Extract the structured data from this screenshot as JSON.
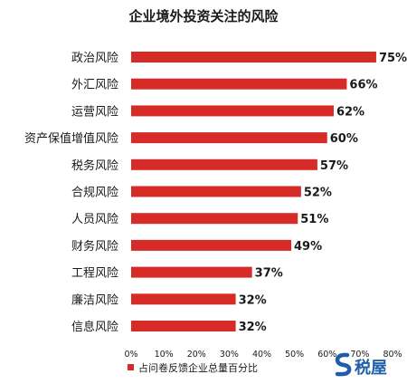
{
  "chart_data": {
    "type": "bar",
    "orientation": "horizontal",
    "title": "企业境外投资关注的风险",
    "categories": [
      "政治风险",
      "外汇风险",
      "运营风险",
      "资产保值增值风险",
      "税务风险",
      "合规风险",
      "人员风险",
      "财务风险",
      "工程风险",
      "廉洁风险",
      "信息风险"
    ],
    "series": [
      {
        "name": "占问卷反馈企业总量百分比",
        "values": [
          75,
          66,
          62,
          60,
          57,
          52,
          51,
          49,
          37,
          32,
          32
        ],
        "labels": [
          "75%",
          "66%",
          "62%",
          "60%",
          "57%",
          "52%",
          "51%",
          "49%",
          "37%",
          "32%",
          "32%"
        ],
        "color": "#d62b27"
      }
    ],
    "xlim": [
      0,
      80
    ],
    "xticks": [
      "0%",
      "10%",
      "20%",
      "30%",
      "40%",
      "50%",
      "60%",
      "70%",
      "80%"
    ],
    "xlabel": "",
    "ylabel": "",
    "grid": false,
    "legend_position": "bottom"
  },
  "watermark": {
    "text": "税屋",
    "icon": "s-logo-icon",
    "color": "#1f5fa8"
  }
}
